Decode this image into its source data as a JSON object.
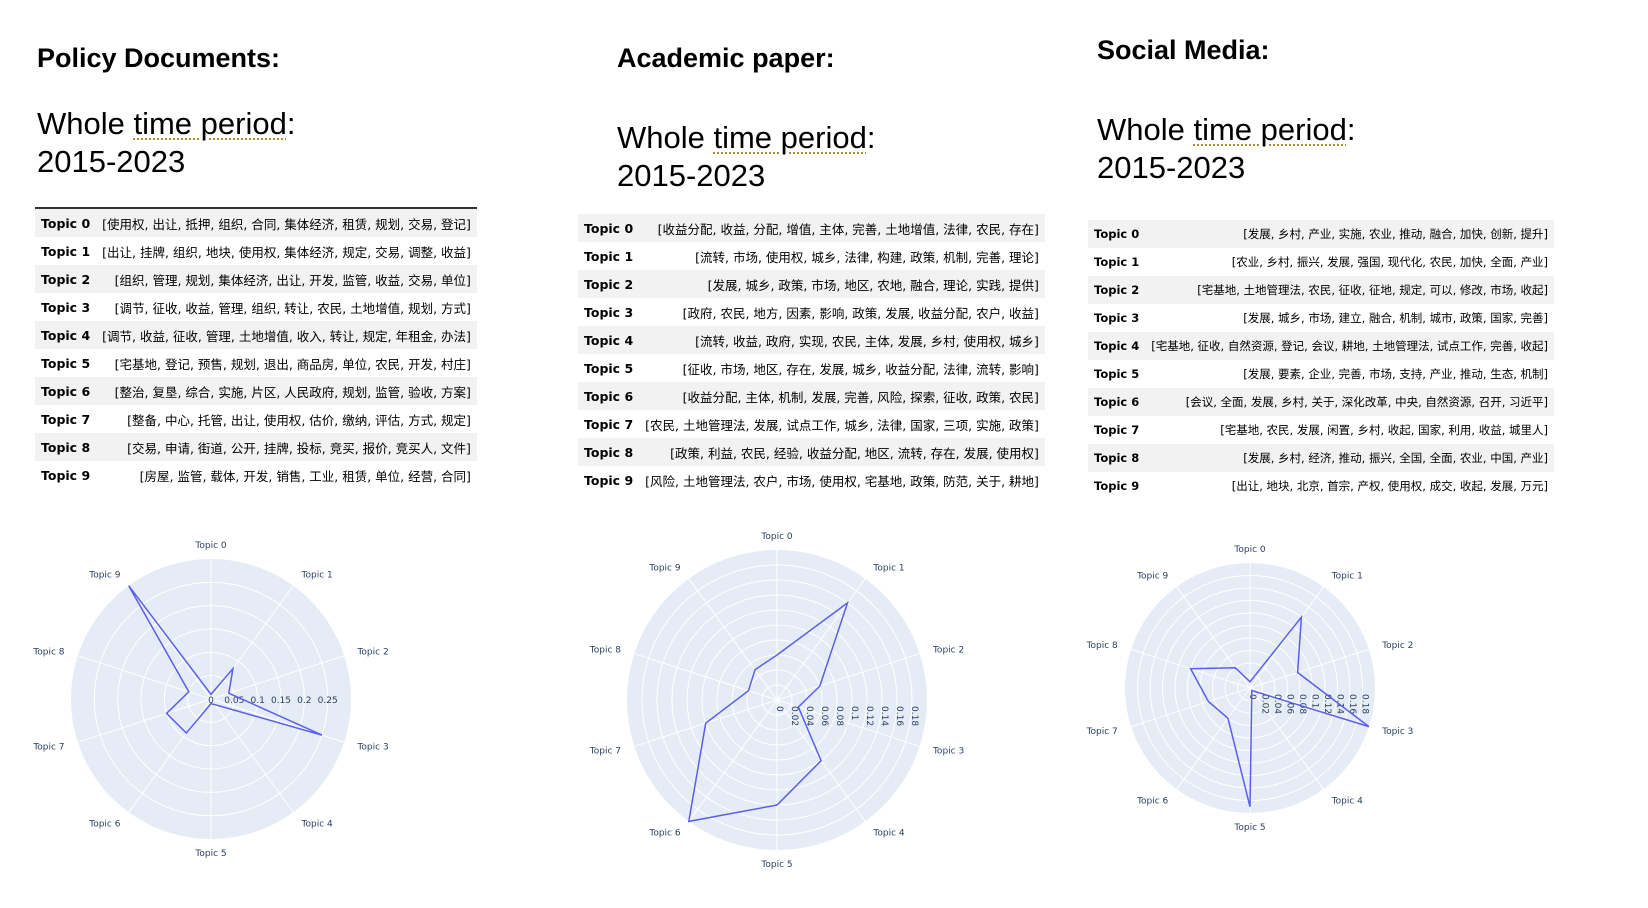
{
  "panels": [
    {
      "heading": "Policy Documents:",
      "period_prefix": "Whole ",
      "period_dotted": "time period",
      "period_suffix": ":",
      "period_years": "2015-2023",
      "topics": [
        {
          "name": "Topic 0",
          "words": "[使用权, 出让, 抵押, 组织, 合同, 集体经济, 租赁, 规划, 交易, 登记]"
        },
        {
          "name": "Topic 1",
          "words": "[出让, 挂牌, 组织, 地块, 使用权, 集体经济, 规定, 交易, 调整, 收益]"
        },
        {
          "name": "Topic 2",
          "words": "[组织, 管理, 规划, 集体经济, 出让, 开发, 监管, 收益, 交易, 单位]"
        },
        {
          "name": "Topic 3",
          "words": "[调节, 征收, 收益, 管理, 组织, 转让, 农民, 土地增值, 规划, 方式]"
        },
        {
          "name": "Topic 4",
          "words": "[调节, 收益, 征收, 管理, 土地增值, 收入, 转让, 规定, 年租金, 办法]"
        },
        {
          "name": "Topic 5",
          "words": "[宅基地, 登记, 预售, 规划, 退出, 商品房, 单位, 农民, 开发, 村庄]"
        },
        {
          "name": "Topic 6",
          "words": "[整治, 复垦, 综合, 实施, 片区, 人民政府, 规划, 监管, 验收, 方案]"
        },
        {
          "name": "Topic 7",
          "words": "[整备, 中心, 托管, 出让, 使用权, 估价, 缴纳, 评估, 方式, 规定]"
        },
        {
          "name": "Topic 8",
          "words": "[交易, 申请, 街道, 公开, 挂牌, 投标, 竞买, 报价, 竞买人, 文件]"
        },
        {
          "name": "Topic 9",
          "words": "[房屋, 监管, 载体, 开发, 销售, 工业, 租赁, 单位, 经营, 合同]"
        }
      ]
    },
    {
      "heading": "Academic paper:",
      "period_prefix": "Whole ",
      "period_dotted": "time period",
      "period_suffix": ":",
      "period_years": "2015-2023",
      "topics": [
        {
          "name": "Topic 0",
          "words": "[收益分配, 收益, 分配, 增值, 主体, 完善, 土地增值, 法律, 农民, 存在]"
        },
        {
          "name": "Topic 1",
          "words": "[流转, 市场, 使用权, 城乡, 法律, 构建, 政策, 机制, 完善, 理论]"
        },
        {
          "name": "Topic 2",
          "words": "[发展, 城乡, 政策, 市场, 地区, 农地, 融合, 理论, 实践, 提供]"
        },
        {
          "name": "Topic 3",
          "words": "[政府, 农民, 地方, 因素, 影响, 政策, 发展, 收益分配, 农户, 收益]"
        },
        {
          "name": "Topic 4",
          "words": "[流转, 收益, 政府, 实现, 农民, 主体, 发展, 乡村, 使用权, 城乡]"
        },
        {
          "name": "Topic 5",
          "words": "[征收, 市场, 地区, 存在, 发展, 城乡, 收益分配, 法律, 流转, 影响]"
        },
        {
          "name": "Topic 6",
          "words": "[收益分配, 主体, 机制, 发展, 完善, 风险, 探索, 征收, 政策, 农民]"
        },
        {
          "name": "Topic 7",
          "words": "[农民, 土地管理法, 发展, 试点工作, 城乡, 法律, 国家, 三项, 实施, 政策]"
        },
        {
          "name": "Topic 8",
          "words": "[政策, 利益, 农民, 经验, 收益分配, 地区, 流转, 存在, 发展, 使用权]"
        },
        {
          "name": "Topic 9",
          "words": "[风险, 土地管理法, 农户, 市场, 使用权, 宅基地, 政策, 防范, 关于, 耕地]"
        }
      ]
    },
    {
      "heading": "Social Media:",
      "period_prefix": "Whole ",
      "period_dotted": "time period",
      "period_suffix": ":",
      "period_years": "2015-2023",
      "topics": [
        {
          "name": "Topic 0",
          "words": "[发展, 乡村, 产业, 实施, 农业, 推动, 融合, 加快, 创新, 提升]"
        },
        {
          "name": "Topic 1",
          "words": "[农业, 乡村, 振兴, 发展, 强国, 现代化, 农民, 加快, 全面, 产业]"
        },
        {
          "name": "Topic 2",
          "words": "[宅基地, 土地管理法, 农民, 征收, 征地, 规定, 可以, 修改, 市场, 收起]"
        },
        {
          "name": "Topic 3",
          "words": "[发展, 城乡, 市场, 建立, 融合, 机制, 城市, 政策, 国家, 完善]"
        },
        {
          "name": "Topic 4",
          "words": "[宅基地, 征收, 自然资源, 登记, 会议, 耕地, 土地管理法, 试点工作, 完善, 收起]"
        },
        {
          "name": "Topic 5",
          "words": "[发展, 要素, 企业, 完善, 市场, 支持, 产业, 推动, 生态, 机制]"
        },
        {
          "name": "Topic 6",
          "words": "[会议, 全面, 发展, 乡村, 关于, 深化改革, 中央, 自然资源, 召开, 习近平]"
        },
        {
          "name": "Topic 7",
          "words": "[宅基地, 农民, 发展, 闲置, 乡村, 收起, 国家, 利用, 收益, 城里人]"
        },
        {
          "name": "Topic 8",
          "words": "[发展, 乡村, 经济, 推动, 振兴, 全国, 全面, 农业, 中国, 产业]"
        },
        {
          "name": "Topic 9",
          "words": "[出让, 地块, 北京, 首宗, 产权, 使用权, 成交, 收起, 发展, 万元]"
        }
      ]
    }
  ],
  "chart_data": [
    {
      "type": "radar",
      "categories": [
        "Topic 0",
        "Topic 1",
        "Topic 2",
        "Topic 3",
        "Topic 4",
        "Topic 5",
        "Topic 6",
        "Topic 7",
        "Topic 8",
        "Topic 9"
      ],
      "values": [
        0.01,
        0.08,
        0.04,
        0.25,
        0.015,
        0.01,
        0.09,
        0.1,
        0.05,
        0.3
      ],
      "radial_range": [
        0,
        0.3
      ],
      "radial_ticks": [
        "0",
        "0.05",
        "0.1",
        "0.15",
        "0.2",
        "0.25"
      ],
      "radial_tick_values": [
        0,
        0.05,
        0.1,
        0.15,
        0.2,
        0.25
      ],
      "line_color": "#5b5fe8",
      "background_color": "#e5ecf6",
      "grid": true
    },
    {
      "type": "radar",
      "categories": [
        "Topic 0",
        "Topic 1",
        "Topic 2",
        "Topic 3",
        "Topic 4",
        "Topic 5",
        "Topic 6",
        "Topic 7",
        "Topic 8",
        "Topic 9"
      ],
      "values": [
        0.06,
        0.16,
        0.06,
        0.03,
        0.1,
        0.14,
        0.2,
        0.1,
        0.04,
        0.05
      ],
      "radial_range": [
        0,
        0.2
      ],
      "radial_ticks": [
        "0",
        "0.02",
        "0.04",
        "0.06",
        "0.08",
        "0.1",
        "0.12",
        "0.14",
        "0.16",
        "0.18"
      ],
      "radial_tick_values": [
        0,
        0.02,
        0.04,
        0.06,
        0.08,
        0.1,
        0.12,
        0.14,
        0.16,
        0.18
      ],
      "line_color": "#5b5fe8",
      "background_color": "#e5ecf6",
      "grid": true
    },
    {
      "type": "radar",
      "categories": [
        "Topic 0",
        "Topic 1",
        "Topic 2",
        "Topic 3",
        "Topic 4",
        "Topic 5",
        "Topic 6",
        "Topic 7",
        "Topic 8",
        "Topic 9"
      ],
      "values": [
        0.01,
        0.14,
        0.08,
        0.2,
        0.005,
        0.19,
        0.06,
        0.07,
        0.1,
        0.04
      ],
      "radial_range": [
        0,
        0.2
      ],
      "radial_ticks": [
        "0",
        "0.02",
        "0.04",
        "0.06",
        "0.08",
        "0.1",
        "0.12",
        "0.14",
        "0.16",
        "0.18"
      ],
      "radial_tick_values": [
        0,
        0.02,
        0.04,
        0.06,
        0.08,
        0.1,
        0.12,
        0.14,
        0.16,
        0.18
      ],
      "line_color": "#5b5fe8",
      "background_color": "#e5ecf6",
      "grid": true
    }
  ]
}
